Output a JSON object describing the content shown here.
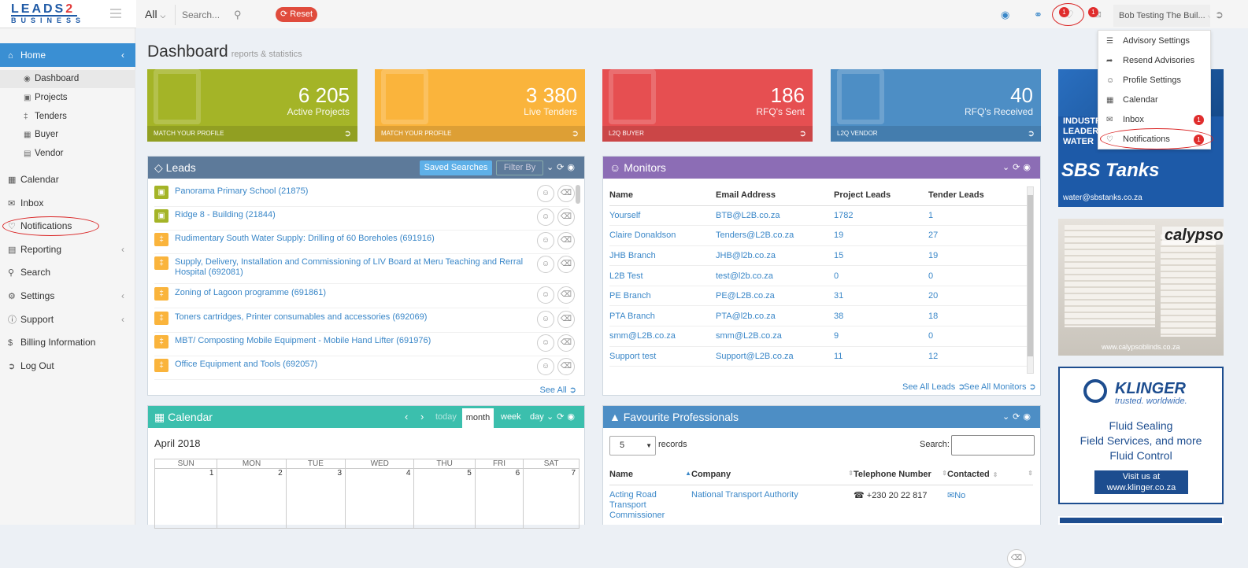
{
  "logo": {
    "line1_a": "LEADS",
    "line1_b": "2",
    "line2": "BUSINESS"
  },
  "topbar": {
    "scope": "All",
    "search_placeholder": "Search...",
    "reset_label": "Reset",
    "notif_badge": "1",
    "inbox_badge": "1",
    "user_name": "Bob Testing The Buil..."
  },
  "sidebar": {
    "home": "Home",
    "sub": [
      "Dashboard",
      "Projects",
      "Tenders",
      "Buyer",
      "Vendor"
    ],
    "items": [
      "Calendar",
      "Inbox",
      "Notifications",
      "Reporting",
      "Search",
      "Settings",
      "Support",
      "Billing Information",
      "Log Out"
    ]
  },
  "dashboard": {
    "title": "Dashboard",
    "subtitle": "reports & statistics"
  },
  "stats": [
    {
      "num": "6 205",
      "label": "Active Projects",
      "foot": "MATCH YOUR PROFILE",
      "color": "#a4b427"
    },
    {
      "num": "3 380",
      "label": "Live Tenders",
      "foot": "MATCH YOUR PROFILE",
      "color": "#fab43c"
    },
    {
      "num": "186",
      "label": "RFQ's Sent",
      "foot": "L2Q BUYER",
      "color": "#e64f51"
    },
    {
      "num": "40",
      "label": "RFQ's Received",
      "foot": "L2Q VENDOR",
      "color": "#4d8ec5"
    }
  ],
  "leads": {
    "title": "Leads",
    "saved_searches": "Saved Searches",
    "filter_by": "Filter By",
    "see_all": "See All",
    "rows": [
      {
        "text": "Panorama Primary School (21875)",
        "color": "#a4b427"
      },
      {
        "text": "Ridge 8 - Building (21844)",
        "color": "#a4b427"
      },
      {
        "text": "Rudimentary South Water Supply: Drilling of 60 Boreholes (691916)",
        "color": "#fab43c"
      },
      {
        "text": "Supply, Delivery, Installation and Commissioning of LIV Board at Meru Teaching and Rerral Hospital (692081)",
        "color": "#fab43c"
      },
      {
        "text": "Zoning of Lagoon programme (691861)",
        "color": "#fab43c"
      },
      {
        "text": "Toners cartridges, Printer consumables and accessories (692069)",
        "color": "#fab43c"
      },
      {
        "text": "MBT/ Composting Mobile Equipment - Mobile Hand Lifter (691976)",
        "color": "#fab43c"
      },
      {
        "text": "Office Equipment and Tools (692057)",
        "color": "#fab43c"
      }
    ]
  },
  "monitors": {
    "title": "Monitors",
    "headers": [
      "Name",
      "Email Address",
      "Project Leads",
      "Tender Leads"
    ],
    "rows": [
      [
        "Yourself",
        "BTB@L2B.co.za",
        "1782",
        "1"
      ],
      [
        "Claire Donaldson",
        "Tenders@L2B.co.za",
        "19",
        "27"
      ],
      [
        "JHB Branch",
        "JHB@l2b.co.za",
        "15",
        "19"
      ],
      [
        "L2B Test",
        "test@l2b.co.za",
        "0",
        "0"
      ],
      [
        "PE Branch",
        "PE@L2B.co.za",
        "31",
        "20"
      ],
      [
        "PTA Branch",
        "PTA@l2b.co.za",
        "38",
        "18"
      ],
      [
        "smm@L2B.co.za",
        "smm@L2B.co.za",
        "9",
        "0"
      ],
      [
        "Support test",
        "Support@L2B.co.za",
        "11",
        "12"
      ]
    ],
    "see_all_leads": "See All Leads",
    "see_all_monitors": "See All Monitors"
  },
  "calendar": {
    "title": "Calendar",
    "today": "today",
    "month": "month",
    "week": "week",
    "day": "day",
    "month_label": "April 2018",
    "days": [
      "SUN",
      "MON",
      "TUE",
      "WED",
      "THU",
      "FRI",
      "SAT"
    ],
    "dates": [
      "1",
      "2",
      "3",
      "4",
      "5",
      "6",
      "7"
    ]
  },
  "favourites": {
    "title": "Favourite Professionals",
    "page_size": "5",
    "records": "records",
    "search_label": "Search:",
    "headers": [
      "Name",
      "Company",
      "Telephone Number",
      "Contacted"
    ],
    "row": {
      "name": "Acting Road Transport Commissioner",
      "company": "National Transport Authority",
      "phone": "+230 20 22 817",
      "contacted": "No"
    }
  },
  "dropdown": {
    "items": [
      "Advisory Settings",
      "Resend Advisories",
      "Profile Settings",
      "Calendar",
      "Inbox",
      "Notifications"
    ],
    "inbox_badge": "1",
    "notifications_badge": "1"
  },
  "ads": {
    "sbs": {
      "industry": "INDUSTRY",
      "leader": "LEADER",
      "water": "WATER",
      "brand": "SBS Tanks",
      "url": "water@sbstanks.co.za"
    },
    "calypso": {
      "brand": "calypso",
      "url": "www.calypsoblinds.co.za"
    },
    "klinger": {
      "brand": "KLINGER",
      "tagline": "trusted. worldwide.",
      "l1": "Fluid Sealing",
      "l2": "Field Services, and more",
      "l3": "Fluid Control",
      "btn1": "Visit us at",
      "btn2": "www.klinger.co.za"
    }
  }
}
